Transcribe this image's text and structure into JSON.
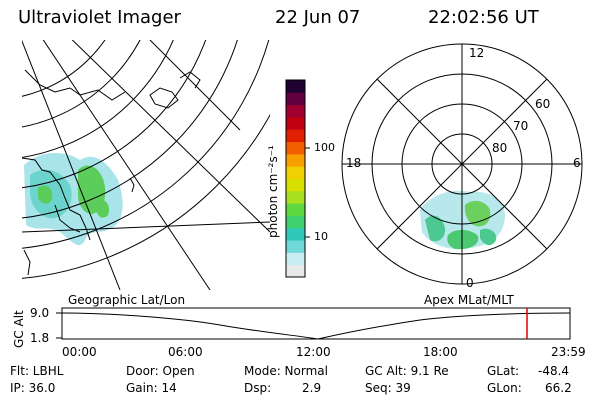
{
  "header": {
    "instrument": "Ultraviolet Imager",
    "date": "22 Jun 07",
    "time": "22:02:56 UT"
  },
  "colorbar": {
    "unit_label": "photon cm⁻²s⁻¹",
    "ticks": [
      "100",
      "10"
    ],
    "scale": "log",
    "colors": [
      "#e8e8e8",
      "#c8eef2",
      "#70d8d8",
      "#30c8b8",
      "#40d070",
      "#60d840",
      "#a8e020",
      "#d8e000",
      "#f0d000",
      "#f8a000",
      "#f06000",
      "#e02000",
      "#c00010",
      "#a00030",
      "#600040",
      "#200030"
    ]
  },
  "geo_panel": {
    "label": "Geographic Lat/Lon"
  },
  "polar_panel": {
    "label": "Apex MLat/MLT",
    "hour_labels": {
      "top": "12",
      "left": "18",
      "right": "6",
      "bottom": "0"
    },
    "lat_labels": [
      "60",
      "70",
      "80"
    ]
  },
  "altitude_plot": {
    "ylabel": "GC Alt",
    "yticks": [
      "9.0",
      "1.8"
    ],
    "xticks": [
      "00:00",
      "06:00",
      "12:00",
      "18:00",
      "23:59"
    ],
    "current_time_color": "#e00000"
  },
  "info": {
    "filter": "Flt: LBHL",
    "ip": "IP: 36.0",
    "door": "Door: Open",
    "gain": "Gain: 14",
    "mode": "Mode: Normal",
    "dsp_label": "Dsp:",
    "dsp_value": "2.9",
    "gc_alt": "GC Alt: 9.1 Re",
    "seq": "Seq: 39",
    "glat_label": "GLat:",
    "glat_value": "-48.4",
    "glon_label": "GLon:",
    "glon_value": "66.2"
  }
}
